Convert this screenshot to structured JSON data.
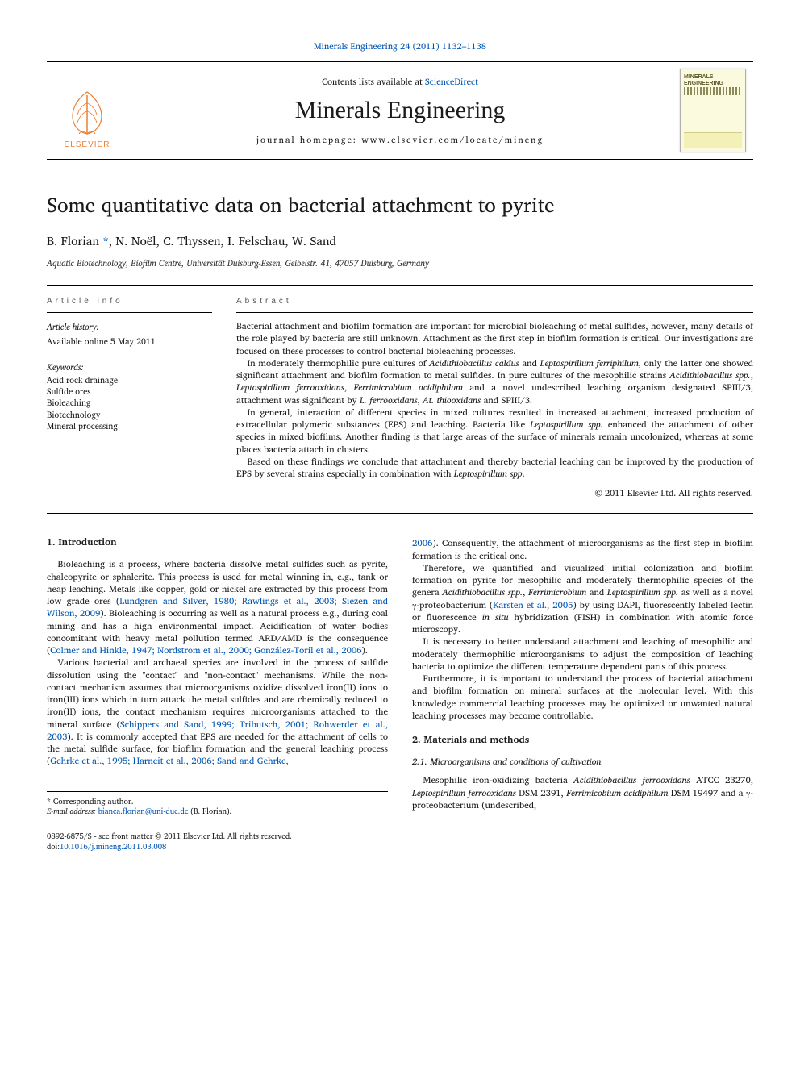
{
  "journal": {
    "citation_line": "Minerals Engineering 24 (2011) 1132–1138",
    "contents_prefix": "Contents lists available at ",
    "contents_link": "ScienceDirect",
    "name": "Minerals Engineering",
    "homepage_prefix": "journal homepage: ",
    "homepage_url": "www.elsevier.com/locate/mineng",
    "publisher_word": "ELSEVIER",
    "cover_title": "MINERALS ENGINEERING"
  },
  "article": {
    "title": "Some quantitative data on bacterial attachment to pyrite",
    "authors_html": "B. Florian <a href='#'>*</a>, N. Noël, C. Thyssen, I. Felschau, W. Sand",
    "affiliation": "Aquatic Biotechnology, Biofilm Centre, Universität Duisburg-Essen, Geibelstr. 41, 47057 Duisburg, Germany"
  },
  "info": {
    "left_label": "article info",
    "history_label": "Article history:",
    "history_text": "Available online 5 May 2011",
    "keywords_label": "Keywords:",
    "keywords": [
      "Acid rock drainage",
      "Sulfide ores",
      "Bioleaching",
      "Biotechnology",
      "Mineral processing"
    ],
    "right_label": "abstract",
    "abstract_paragraphs": [
      "Bacterial attachment and biofilm formation are important for microbial bioleaching of metal sulfides, however, many details of the role played by bacteria are still unknown. Attachment as the first step in biofilm formation is critical. Our investigations are focused on these processes to control bacterial bioleaching processes.",
      "In moderately thermophilic pure cultures of <span class='genus'>Acidithiobacillus caldus</span> and <span class='genus'>Leptospirillum ferriphilum</span>, only the latter one showed significant attachment and biofilm formation to metal sulfides. In pure cultures of the mesophilic strains <span class='genus'>Acidithiobacillus spp.</span>, <span class='genus'>Leptospirillum ferrooxidans</span>, <span class='genus'>Ferrimicrobium acidiphilum</span> and a novel undescribed leaching organism designated SPIII/3, attachment was significant by <span class='genus'>L. ferrooxidans</span>, <span class='genus'>At. thiooxidans</span> and SPIII/3.",
      "In general, interaction of different species in mixed cultures resulted in increased attachment, increased production of extracellular polymeric substances (EPS) and leaching. Bacteria like <span class='genus'>Leptospirillum spp.</span> enhanced the attachment of other species in mixed biofilms. Another finding is that large areas of the surface of minerals remain uncolonized, whereas at some places bacteria attach in clusters.",
      "Based on these findings we conclude that attachment and thereby bacterial leaching can be improved by the production of EPS by several strains especially in combination with <span class='genus'>Leptospirillum spp</span>."
    ],
    "copyright": "© 2011 Elsevier Ltd. All rights reserved."
  },
  "body": {
    "sec1_head": "1. Introduction",
    "sec1_paras_col1": [
      "Bioleaching is a process, where bacteria dissolve metal sulfides such as pyrite, chalcopyrite or sphalerite. This process is used for metal winning in, e.g., tank or heap leaching. Metals like copper, gold or nickel are extracted by this process from low grade ores (<a class='ref-link' href='#'>Lundgren and Silver, 1980</a>; <a class='ref-link' href='#'>Rawlings et al., 2003; Siezen and Wilson, 2009</a>). Bioleaching is occurring as well as a natural process e.g., during coal mining and has a high environmental impact. Acidification of water bodies concomitant with heavy metal pollution termed ARD/AMD is the consequence (<a class='ref-link' href='#'>Colmer and Hinkle, 1947; Nordstrom et al., 2000; González-Toril et al., 2006</a>).",
      "Various bacterial and archaeal species are involved in the process of sulfide dissolution using the \"contact\" and \"non-contact\" mechanisms. While the non-contact mechanism assumes that microorganisms oxidize dissolved iron(II) ions to iron(III) ions which in turn attack the metal sulfides and are chemically reduced to iron(II) ions, the contact mechanism requires microorganisms attached to the mineral surface (<a class='ref-link' href='#'>Schippers and Sand, 1999; Tributsch, 2001; Rohwerder et al., 2003</a>). It is commonly accepted that EPS are needed for the attachment of cells to the metal sulfide surface, for biofilm formation and the general leaching process (<a class='ref-link' href='#'>Gehrke et al., 1995; Harneit et al., 2006; Sand and Gehrke,</a>"
    ],
    "col2_cont": "<a class='ref-link' href='#'>2006</a>). Consequently, the attachment of microorganisms as the first step in biofilm formation is the critical one.",
    "sec1_paras_col2": [
      "Therefore, we quantified and visualized initial colonization and biofilm formation on pyrite for mesophilic and moderately thermophilic species of the genera <span class='genus'>Acidithiobacillus spp.</span>, <span class='genus'>Ferrimicrobium</span> and <span class='genus'>Leptospirillum spp.</span> as well as a novel γ-proteobacterium (<a class='ref-link' href='#'>Karsten et al., 2005</a>) by using DAPI, fluorescently labeled lectin or fluorescence <span class='genus'>in situ</span> hybridization (FISH) in combination with atomic force microscopy.",
      "It is necessary to better understand attachment and leaching of mesophilic and moderately thermophilic microorganisms to adjust the composition of leaching bacteria to optimize the different temperature dependent parts of this process.",
      "Furthermore, it is important to understand the process of bacterial attachment and biofilm formation on mineral surfaces at the molecular level. With this knowledge commercial leaching processes may be optimized or unwanted natural leaching processes may become controllable."
    ],
    "sec2_head": "2. Materials and methods",
    "sec21_head": "2.1. Microorganisms and conditions of cultivation",
    "sec21_para": "Mesophilic iron-oxidizing bacteria <span class='genus'>Acidithiobacillus ferrooxidans</span> ATCC 23270, <span class='genus'>Leptospirillum ferrooxidans</span> DSM 2391, <span class='genus'>Ferrimicobium acidiphilum</span> DSM 19497 and a γ-proteobacterium (undescribed,"
  },
  "footnote": {
    "star": "* Corresponding author.",
    "email_label": "E-mail address:",
    "email": "bianca.florian@uni-due.de",
    "email_tail": " (B. Florian)."
  },
  "footer": {
    "line1": "0892-6875/$ - see front matter © 2011 Elsevier Ltd. All rights reserved.",
    "doi_prefix": "doi:",
    "doi": "10.1016/j.mineng.2011.03.008"
  },
  "colors": {
    "link": "#0056b3",
    "elsevier_orange": "#ed7d31",
    "text": "#1a1a1a",
    "rule": "#000000",
    "cover_bg": "#fbfadf"
  },
  "typography": {
    "body_pt": 11.3,
    "title_pt": 25,
    "journal_name_pt": 30,
    "small_pt": 10.5
  }
}
